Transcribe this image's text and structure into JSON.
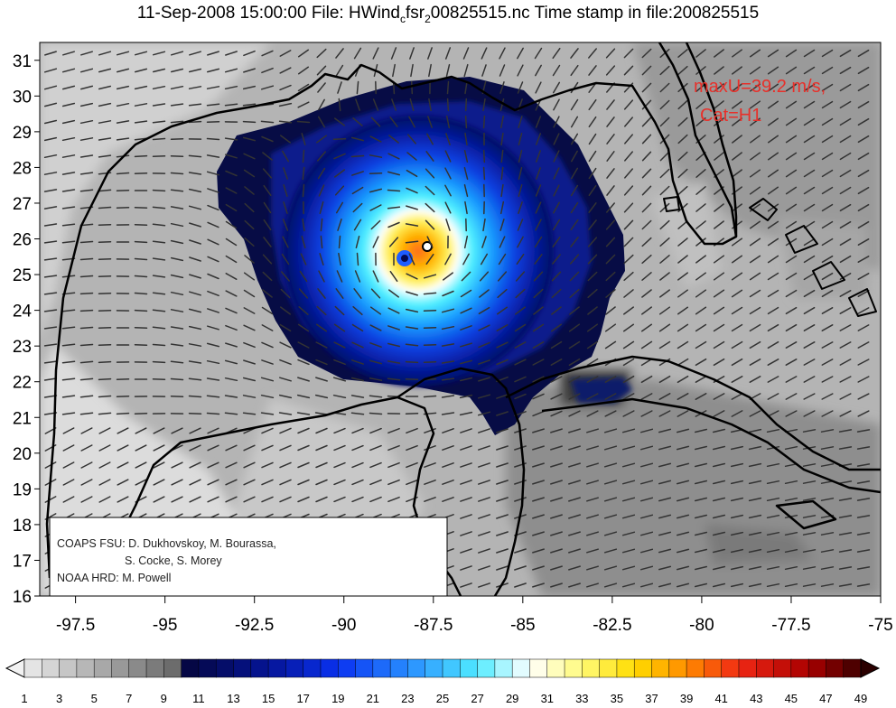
{
  "title": {
    "date": "11-Sep-2008 15:00:00",
    "file_prefix": "File: HWind",
    "sub_c": "c",
    "file_mid": "fsr",
    "sub_2": "2",
    "file_suffix": "00825515.nc Time stamp in file:200825515"
  },
  "annotation": {
    "max_wind": "maxU=39.2 m/s,",
    "category": "Cat=H1",
    "color": "#e8302a"
  },
  "credits": {
    "line1": "COAPS FSU: D. Dukhovskoy, M. Bourassa,",
    "line2": "S. Cocke, S. Morey",
    "line3": "NOAA HRD:  M. Powell"
  },
  "axes": {
    "lon_ticks": [
      "-97.5",
      "-95",
      "-92.5",
      "-90",
      "-87.5",
      "-85",
      "-82.5",
      "-80",
      "-77.5",
      "-75"
    ],
    "lat_ticks": [
      "31",
      "30",
      "29",
      "28",
      "27",
      "26",
      "25",
      "24",
      "23",
      "22",
      "21",
      "20",
      "19",
      "18",
      "17",
      "16"
    ],
    "lon_range": [
      -98.5,
      -75
    ],
    "lat_range": [
      16,
      31.5
    ]
  },
  "storm": {
    "name_hint": "",
    "center_lon": -87.95,
    "center_lat": 25.55,
    "max_wind_ms": 39.2
  },
  "colorbar": {
    "labels": [
      "1",
      "3",
      "5",
      "7",
      "9",
      "11",
      "13",
      "15",
      "17",
      "19",
      "21",
      "23",
      "25",
      "27",
      "29",
      "31",
      "33",
      "35",
      "37",
      "39",
      "41",
      "43",
      "45",
      "47",
      "49"
    ],
    "min": 1,
    "max": 49,
    "step": 1
  }
}
